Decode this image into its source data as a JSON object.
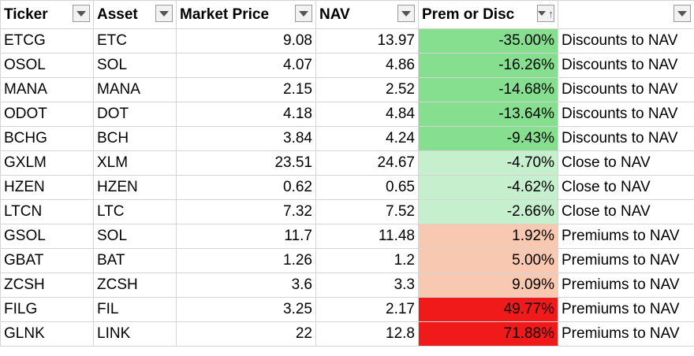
{
  "headers": [
    {
      "label": "Ticker",
      "filter": "filter-dropdown-icon"
    },
    {
      "label": "Asset",
      "filter": "filter-dropdown-icon"
    },
    {
      "label": "Market Price",
      "filter": "filter-dropdown-icon"
    },
    {
      "label": "NAV",
      "filter": "filter-dropdown-icon"
    },
    {
      "label": "Prem or Disc",
      "filter": "sort-ascending-icon",
      "sort_glyph": "↑"
    },
    {
      "label": "",
      "filter": "filter-dropdown-icon"
    }
  ],
  "colors": {
    "dark_green": "#85df8f",
    "light_green": "#c6efce",
    "salmon": "#f8c8b0",
    "red": "#f01a1a"
  },
  "rows": [
    {
      "ticker": "ETCG",
      "asset": "ETC",
      "price": "9.08",
      "nav": "13.97",
      "prem": "-35.00%",
      "category": "Discounts to NAV",
      "color": "#85df8f"
    },
    {
      "ticker": "OSOL",
      "asset": "SOL",
      "price": "4.07",
      "nav": "4.86",
      "prem": "-16.26%",
      "category": "Discounts to NAV",
      "color": "#85df8f"
    },
    {
      "ticker": "MANA",
      "asset": "MANA",
      "price": "2.15",
      "nav": "2.52",
      "prem": "-14.68%",
      "category": "Discounts to NAV",
      "color": "#85df8f"
    },
    {
      "ticker": "ODOT",
      "asset": "DOT",
      "price": "4.18",
      "nav": "4.84",
      "prem": "-13.64%",
      "category": "Discounts to NAV",
      "color": "#85df8f"
    },
    {
      "ticker": "BCHG",
      "asset": "BCH",
      "price": "3.84",
      "nav": "4.24",
      "prem": "-9.43%",
      "category": "Discounts to NAV",
      "color": "#85df8f"
    },
    {
      "ticker": "GXLM",
      "asset": "XLM",
      "price": "23.51",
      "nav": "24.67",
      "prem": "-4.70%",
      "category": "Close to NAV",
      "color": "#c6efce"
    },
    {
      "ticker": "HZEN",
      "asset": "HZEN",
      "price": "0.62",
      "nav": "0.65",
      "prem": "-4.62%",
      "category": "Close to NAV",
      "color": "#c6efce"
    },
    {
      "ticker": "LTCN",
      "asset": "LTC",
      "price": "7.32",
      "nav": "7.52",
      "prem": "-2.66%",
      "category": "Close to NAV",
      "color": "#c6efce"
    },
    {
      "ticker": "GSOL",
      "asset": "SOL",
      "price": "11.7",
      "nav": "11.48",
      "prem": "1.92%",
      "category": "Premiums to NAV",
      "color": "#f8c8b0"
    },
    {
      "ticker": "GBAT",
      "asset": "BAT",
      "price": "1.26",
      "nav": "1.2",
      "prem": "5.00%",
      "category": "Premiums to NAV",
      "color": "#f8c8b0"
    },
    {
      "ticker": "ZCSH",
      "asset": "ZCSH",
      "price": "3.6",
      "nav": "3.3",
      "prem": "9.09%",
      "category": "Premiums to NAV",
      "color": "#f8c8b0"
    },
    {
      "ticker": "FILG",
      "asset": "FIL",
      "price": "3.25",
      "nav": "2.17",
      "prem": "49.77%",
      "category": "Premiums to NAV",
      "color": "#f01a1a"
    },
    {
      "ticker": "GLNK",
      "asset": "LINK",
      "price": "22",
      "nav": "12.8",
      "prem": "71.88%",
      "category": "Premiums to NAV",
      "color": "#f01a1a"
    }
  ]
}
